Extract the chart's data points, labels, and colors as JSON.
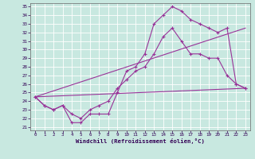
{
  "xlabel": "Windchill (Refroidissement éolien,°C)",
  "background_color": "#c8e8e0",
  "grid_color": "#aad8d0",
  "line_color": "#993399",
  "xlim_min": -0.5,
  "xlim_max": 23.5,
  "ylim_min": 20.6,
  "ylim_max": 35.4,
  "xticks": [
    0,
    1,
    2,
    3,
    4,
    5,
    6,
    7,
    8,
    9,
    10,
    11,
    12,
    13,
    14,
    15,
    16,
    17,
    18,
    19,
    20,
    21,
    22,
    23
  ],
  "yticks": [
    21,
    22,
    23,
    24,
    25,
    26,
    27,
    28,
    29,
    30,
    31,
    32,
    33,
    34,
    35
  ],
  "line1_x": [
    0,
    1,
    2,
    3,
    4,
    5,
    6,
    7,
    8,
    9,
    10,
    11,
    12,
    13,
    14,
    15,
    16,
    17,
    18,
    19,
    20,
    21,
    22,
    23
  ],
  "line1_y": [
    24.5,
    23.5,
    23.0,
    23.5,
    21.5,
    21.5,
    22.5,
    22.5,
    22.5,
    25.0,
    27.5,
    28.0,
    29.5,
    33.0,
    34.0,
    35.0,
    34.5,
    33.5,
    33.0,
    32.5,
    32.0,
    32.5,
    26.0,
    25.5
  ],
  "line2_x": [
    0,
    1,
    2,
    3,
    4,
    5,
    6,
    7,
    8,
    9,
    10,
    11,
    12,
    13,
    14,
    15,
    16,
    17,
    18,
    19,
    20,
    21,
    22,
    23
  ],
  "line2_y": [
    24.5,
    23.5,
    23.0,
    23.5,
    22.5,
    22.0,
    23.0,
    23.5,
    24.0,
    25.5,
    26.5,
    27.5,
    28.0,
    29.5,
    31.5,
    32.5,
    31.0,
    29.5,
    29.5,
    29.0,
    29.0,
    27.0,
    26.0,
    25.5
  ],
  "line3_x": [
    0,
    23
  ],
  "line3_y": [
    24.5,
    32.5
  ],
  "line4_x": [
    0,
    23
  ],
  "line4_y": [
    24.5,
    25.5
  ]
}
